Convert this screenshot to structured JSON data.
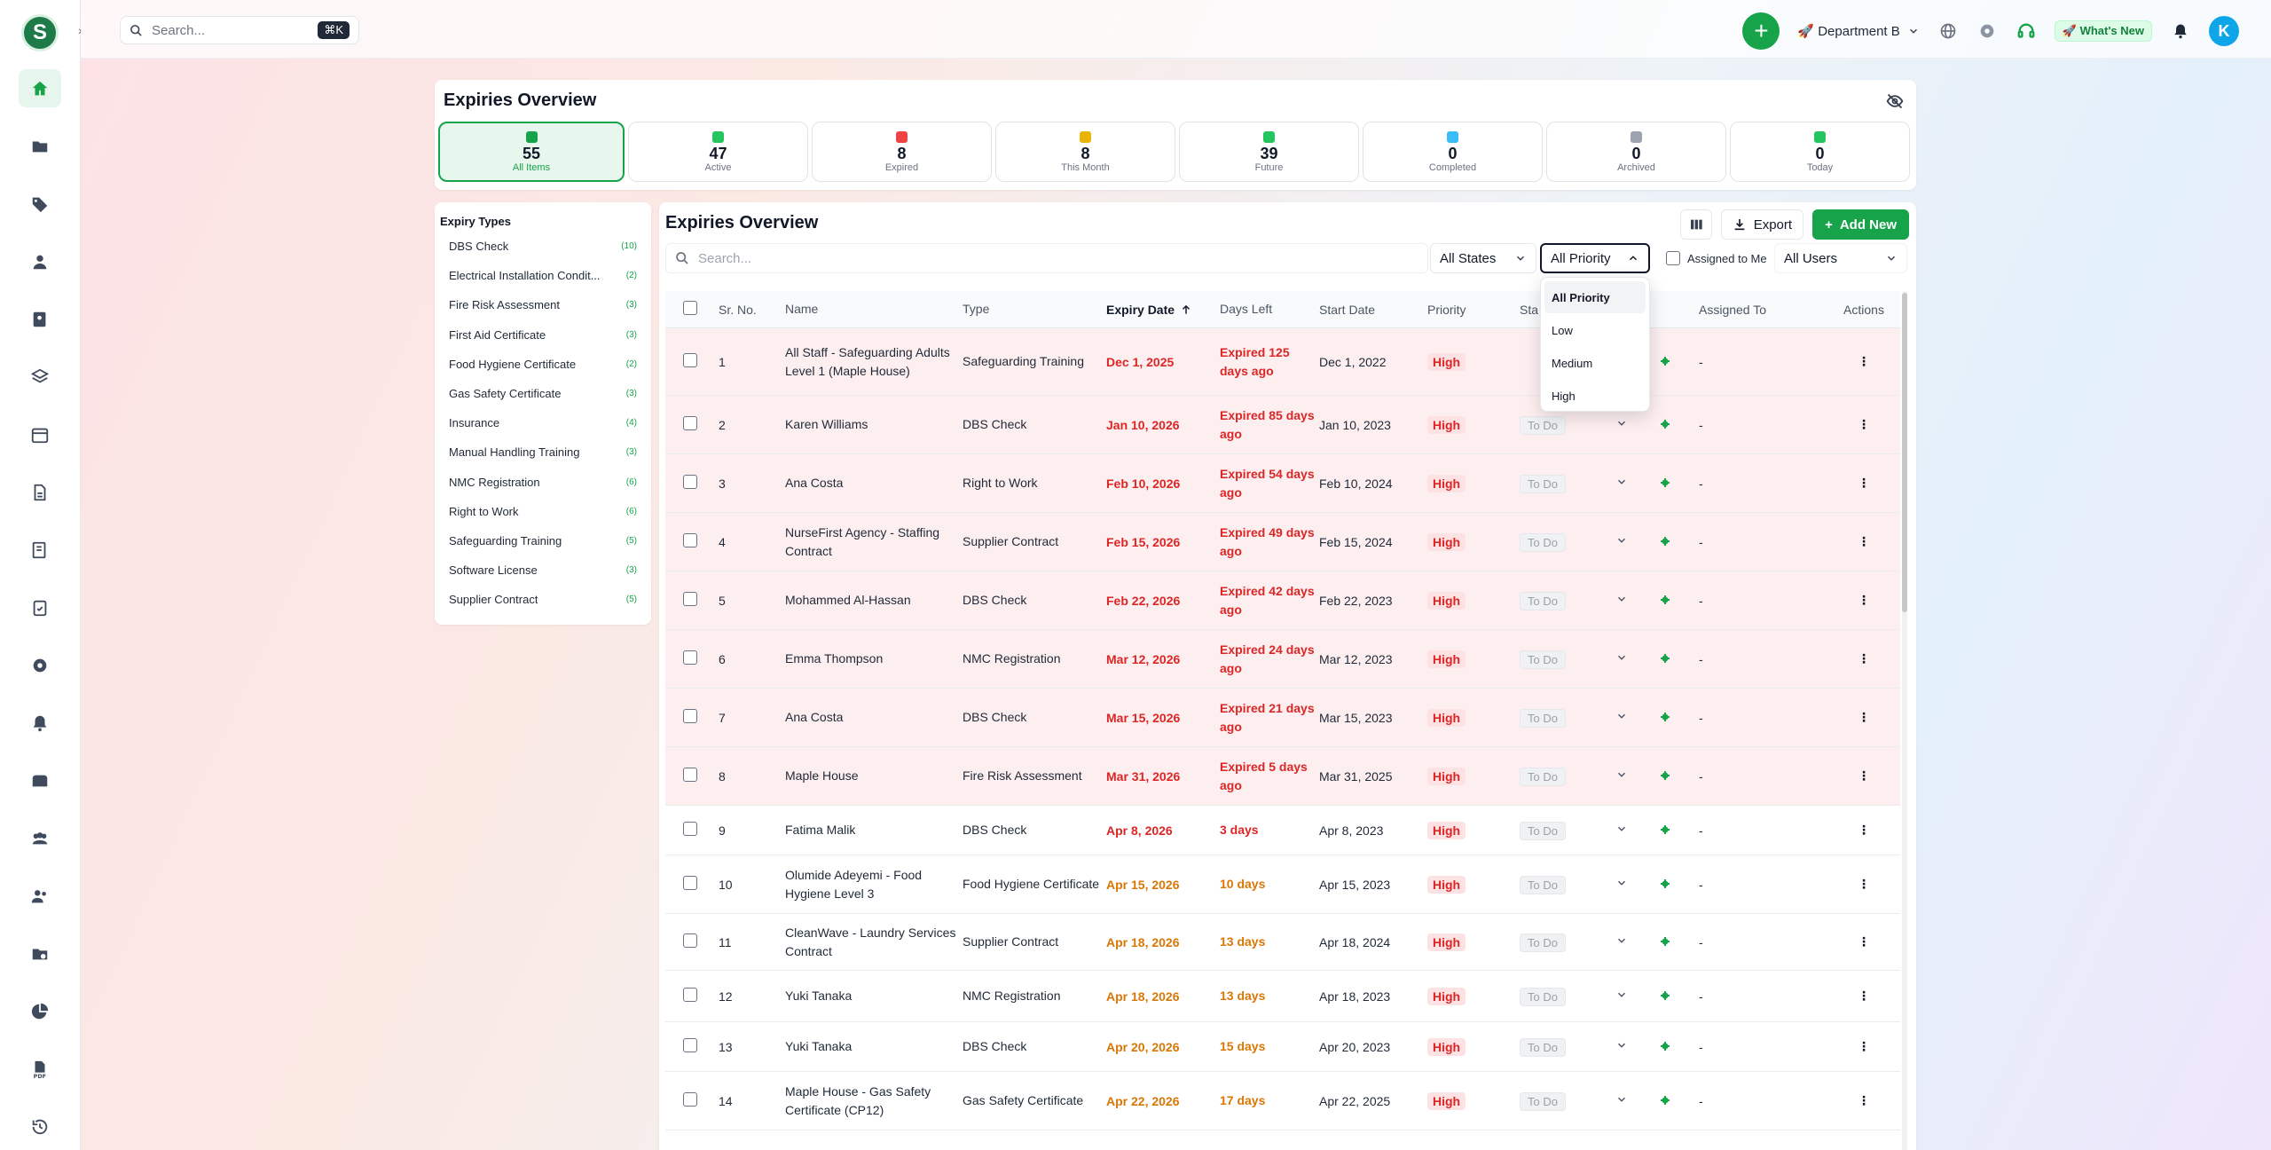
{
  "topbar": {
    "search_placeholder": "Search...",
    "shortcut": "⌘K",
    "department": "🚀 Department B",
    "whats_new": "🚀 What's New",
    "avatar_initial": "K"
  },
  "sidebar": {
    "logo_letter": "S",
    "items": [
      "home",
      "folder",
      "tag",
      "user",
      "address-book",
      "layers",
      "calendar",
      "file",
      "list-check",
      "clipboard-check",
      "gear",
      "bell",
      "mailbox",
      "team",
      "users",
      "folder-settings",
      "pie-chart",
      "pdf",
      "history"
    ]
  },
  "overview": {
    "title": "Expiries Overview",
    "stats": [
      {
        "num": "55",
        "label": "All Items",
        "color": "#16a34a"
      },
      {
        "num": "47",
        "label": "Active",
        "color": "#22c55e"
      },
      {
        "num": "8",
        "label": "Expired",
        "color": "#ef4444"
      },
      {
        "num": "8",
        "label": "This Month",
        "color": "#eab308"
      },
      {
        "num": "39",
        "label": "Future",
        "color": "#22c55e"
      },
      {
        "num": "0",
        "label": "Completed",
        "color": "#38bdf8"
      },
      {
        "num": "0",
        "label": "Archived",
        "color": "#9ca3af"
      },
      {
        "num": "0",
        "label": "Today",
        "color": "#22c55e"
      }
    ]
  },
  "types": {
    "title": "Expiry Types",
    "items": [
      {
        "name": "DBS Check",
        "count": "(10)"
      },
      {
        "name": "Electrical Installation Condit...",
        "count": "(2)"
      },
      {
        "name": "Fire Risk Assessment",
        "count": "(3)"
      },
      {
        "name": "First Aid Certificate",
        "count": "(3)"
      },
      {
        "name": "Food Hygiene Certificate",
        "count": "(2)"
      },
      {
        "name": "Gas Safety Certificate",
        "count": "(3)"
      },
      {
        "name": "Insurance",
        "count": "(4)"
      },
      {
        "name": "Manual Handling Training",
        "count": "(3)"
      },
      {
        "name": "NMC Registration",
        "count": "(6)"
      },
      {
        "name": "Right to Work",
        "count": "(6)"
      },
      {
        "name": "Safeguarding Training",
        "count": "(5)"
      },
      {
        "name": "Software License",
        "count": "(3)"
      },
      {
        "name": "Supplier Contract",
        "count": "(5)"
      }
    ]
  },
  "main": {
    "title": "Expiries Overview",
    "export_label": "Export",
    "add_label": "Add New",
    "search_placeholder": "Search...",
    "states_label": "All States",
    "priority_label": "All Priority",
    "assigned_to_me": "Assigned to Me",
    "users_label": "All Users",
    "columns": {
      "sr": "Sr. No.",
      "name": "Name",
      "type": "Type",
      "expiry": "Expiry Date",
      "days": "Days Left",
      "start": "Start Date",
      "priority": "Priority",
      "status": "Sta",
      "assigned": "Assigned To",
      "actions": "Actions"
    },
    "rows": [
      {
        "no": "1",
        "name": "All Staff - Safeguarding Adults Level 1 (Maple House)",
        "type": "Safeguarding Training",
        "expiry": "Dec 1, 2025",
        "days": "Expired 125 days ago",
        "start": "Dec 1, 2022",
        "priority": "High",
        "status": "",
        "assigned": "-",
        "state": "expired",
        "h": 76
      },
      {
        "no": "2",
        "name": "Karen Williams",
        "type": "DBS Check",
        "expiry": "Jan 10, 2026",
        "days": "Expired 85 days ago",
        "start": "Jan 10, 2023",
        "priority": "High",
        "status": "To Do",
        "assigned": "-",
        "state": "expired",
        "h": 66
      },
      {
        "no": "3",
        "name": "Ana Costa",
        "type": "Right to Work",
        "expiry": "Feb 10, 2026",
        "days": "Expired 54 days ago",
        "start": "Feb 10, 2024",
        "priority": "High",
        "status": "To Do",
        "assigned": "-",
        "state": "expired",
        "h": 66
      },
      {
        "no": "4",
        "name": "NurseFirst Agency - Staffing Contract",
        "type": "Supplier Contract",
        "expiry": "Feb 15, 2026",
        "days": "Expired 49 days ago",
        "start": "Feb 15, 2024",
        "priority": "High",
        "status": "To Do",
        "assigned": "-",
        "state": "expired",
        "h": 66
      },
      {
        "no": "5",
        "name": "Mohammed Al-Hassan",
        "type": "DBS Check",
        "expiry": "Feb 22, 2026",
        "days": "Expired 42 days ago",
        "start": "Feb 22, 2023",
        "priority": "High",
        "status": "To Do",
        "assigned": "-",
        "state": "expired",
        "h": 66
      },
      {
        "no": "6",
        "name": "Emma Thompson",
        "type": "NMC Registration",
        "expiry": "Mar 12, 2026",
        "days": "Expired 24 days ago",
        "start": "Mar 12, 2023",
        "priority": "High",
        "status": "To Do",
        "assigned": "-",
        "state": "expired",
        "h": 66
      },
      {
        "no": "7",
        "name": "Ana Costa",
        "type": "DBS Check",
        "expiry": "Mar 15, 2026",
        "days": "Expired 21 days ago",
        "start": "Mar 15, 2023",
        "priority": "High",
        "status": "To Do",
        "assigned": "-",
        "state": "expired",
        "h": 66
      },
      {
        "no": "8",
        "name": "Maple House",
        "type": "Fire Risk Assessment",
        "expiry": "Mar 31, 2026",
        "days": "Expired 5 days ago",
        "start": "Mar 31, 2025",
        "priority": "High",
        "status": "To Do",
        "assigned": "-",
        "state": "expired",
        "h": 66
      },
      {
        "no": "9",
        "name": "Fatima Malik",
        "type": "DBS Check",
        "expiry": "Apr 8, 2026",
        "days": "3 days",
        "start": "Apr 8, 2023",
        "priority": "High",
        "status": "To Do",
        "assigned": "-",
        "state": "critical",
        "h": 56
      },
      {
        "no": "10",
        "name": "Olumide Adeyemi - Food Hygiene Level 3",
        "type": "Food Hygiene Certificate",
        "expiry": "Apr 15, 2026",
        "days": "10 days",
        "start": "Apr 15, 2023",
        "priority": "High",
        "status": "To Do",
        "assigned": "-",
        "state": "soon",
        "h": 66
      },
      {
        "no": "11",
        "name": "CleanWave - Laundry Services Contract",
        "type": "Supplier Contract",
        "expiry": "Apr 18, 2026",
        "days": "13 days",
        "start": "Apr 18, 2024",
        "priority": "High",
        "status": "To Do",
        "assigned": "-",
        "state": "soon",
        "h": 64
      },
      {
        "no": "12",
        "name": "Yuki Tanaka",
        "type": "NMC Registration",
        "expiry": "Apr 18, 2026",
        "days": "13 days",
        "start": "Apr 18, 2023",
        "priority": "High",
        "status": "To Do",
        "assigned": "-",
        "state": "soon",
        "h": 58
      },
      {
        "no": "13",
        "name": "Yuki Tanaka",
        "type": "DBS Check",
        "expiry": "Apr 20, 2026",
        "days": "15 days",
        "start": "Apr 20, 2023",
        "priority": "High",
        "status": "To Do",
        "assigned": "-",
        "state": "soon",
        "h": 56
      },
      {
        "no": "14",
        "name": "Maple House - Gas Safety Certificate (CP12)",
        "type": "Gas Safety Certificate",
        "expiry": "Apr 22, 2026",
        "days": "17 days",
        "start": "Apr 22, 2025",
        "priority": "High",
        "status": "To Do",
        "assigned": "-",
        "state": "soon",
        "h": 66
      }
    ]
  },
  "priority_dropdown": {
    "options": [
      "All Priority",
      "Low",
      "Medium",
      "High"
    ],
    "selected": "All Priority"
  }
}
